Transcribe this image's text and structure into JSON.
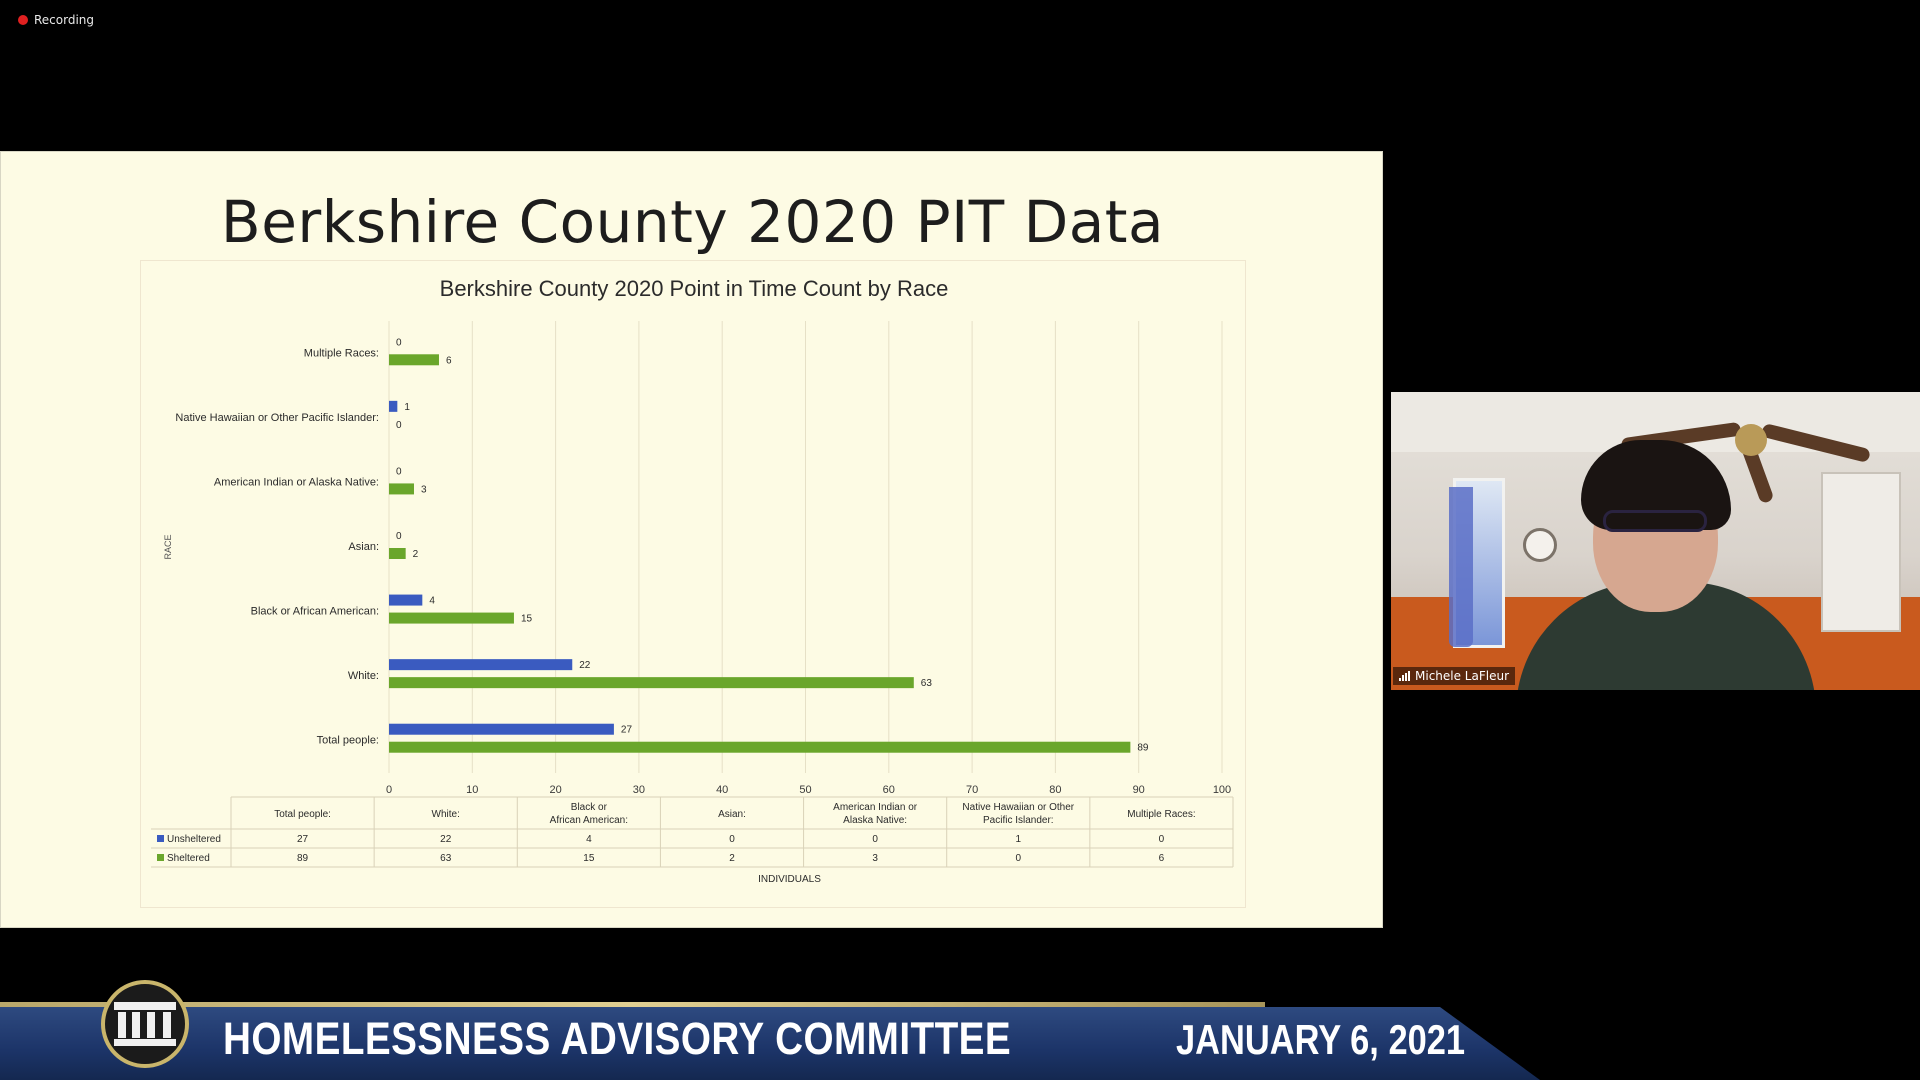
{
  "recording": {
    "label": "Recording",
    "dot_color": "#e02020"
  },
  "slide": {
    "title": "Berkshire County 2020 PIT Data"
  },
  "chart_data": {
    "type": "bar",
    "orientation": "horizontal",
    "title": "Berkshire County 2020 Point in Time Count by Race",
    "xlabel": "INDIVIDUALS",
    "ylabel": "RACE",
    "xlim": [
      0,
      100
    ],
    "xticks": [
      0,
      10,
      20,
      30,
      40,
      50,
      60,
      70,
      80,
      90,
      100
    ],
    "grid": true,
    "categories": [
      "Total people:",
      "White:",
      "Black or African American:",
      "Asian:",
      "American Indian or Alaska Native:",
      "Native Hawaiian or Other Pacific Islander:",
      "Multiple Races:"
    ],
    "series": [
      {
        "name": "Unsheltered",
        "color": "#3a5bc0",
        "values": [
          27,
          22,
          4,
          0,
          0,
          1,
          0
        ]
      },
      {
        "name": "Sheltered",
        "color": "#6aa62b",
        "values": [
          89,
          63,
          15,
          2,
          3,
          0,
          6
        ]
      }
    ],
    "data_table": true
  },
  "participant": {
    "name": "Michele LaFleur"
  },
  "banner": {
    "title": "HOMELESSNESS ADVISORY COMMITTEE",
    "date": "JANUARY 6, 2021",
    "seal_icon": "courthouse-seal-icon"
  }
}
